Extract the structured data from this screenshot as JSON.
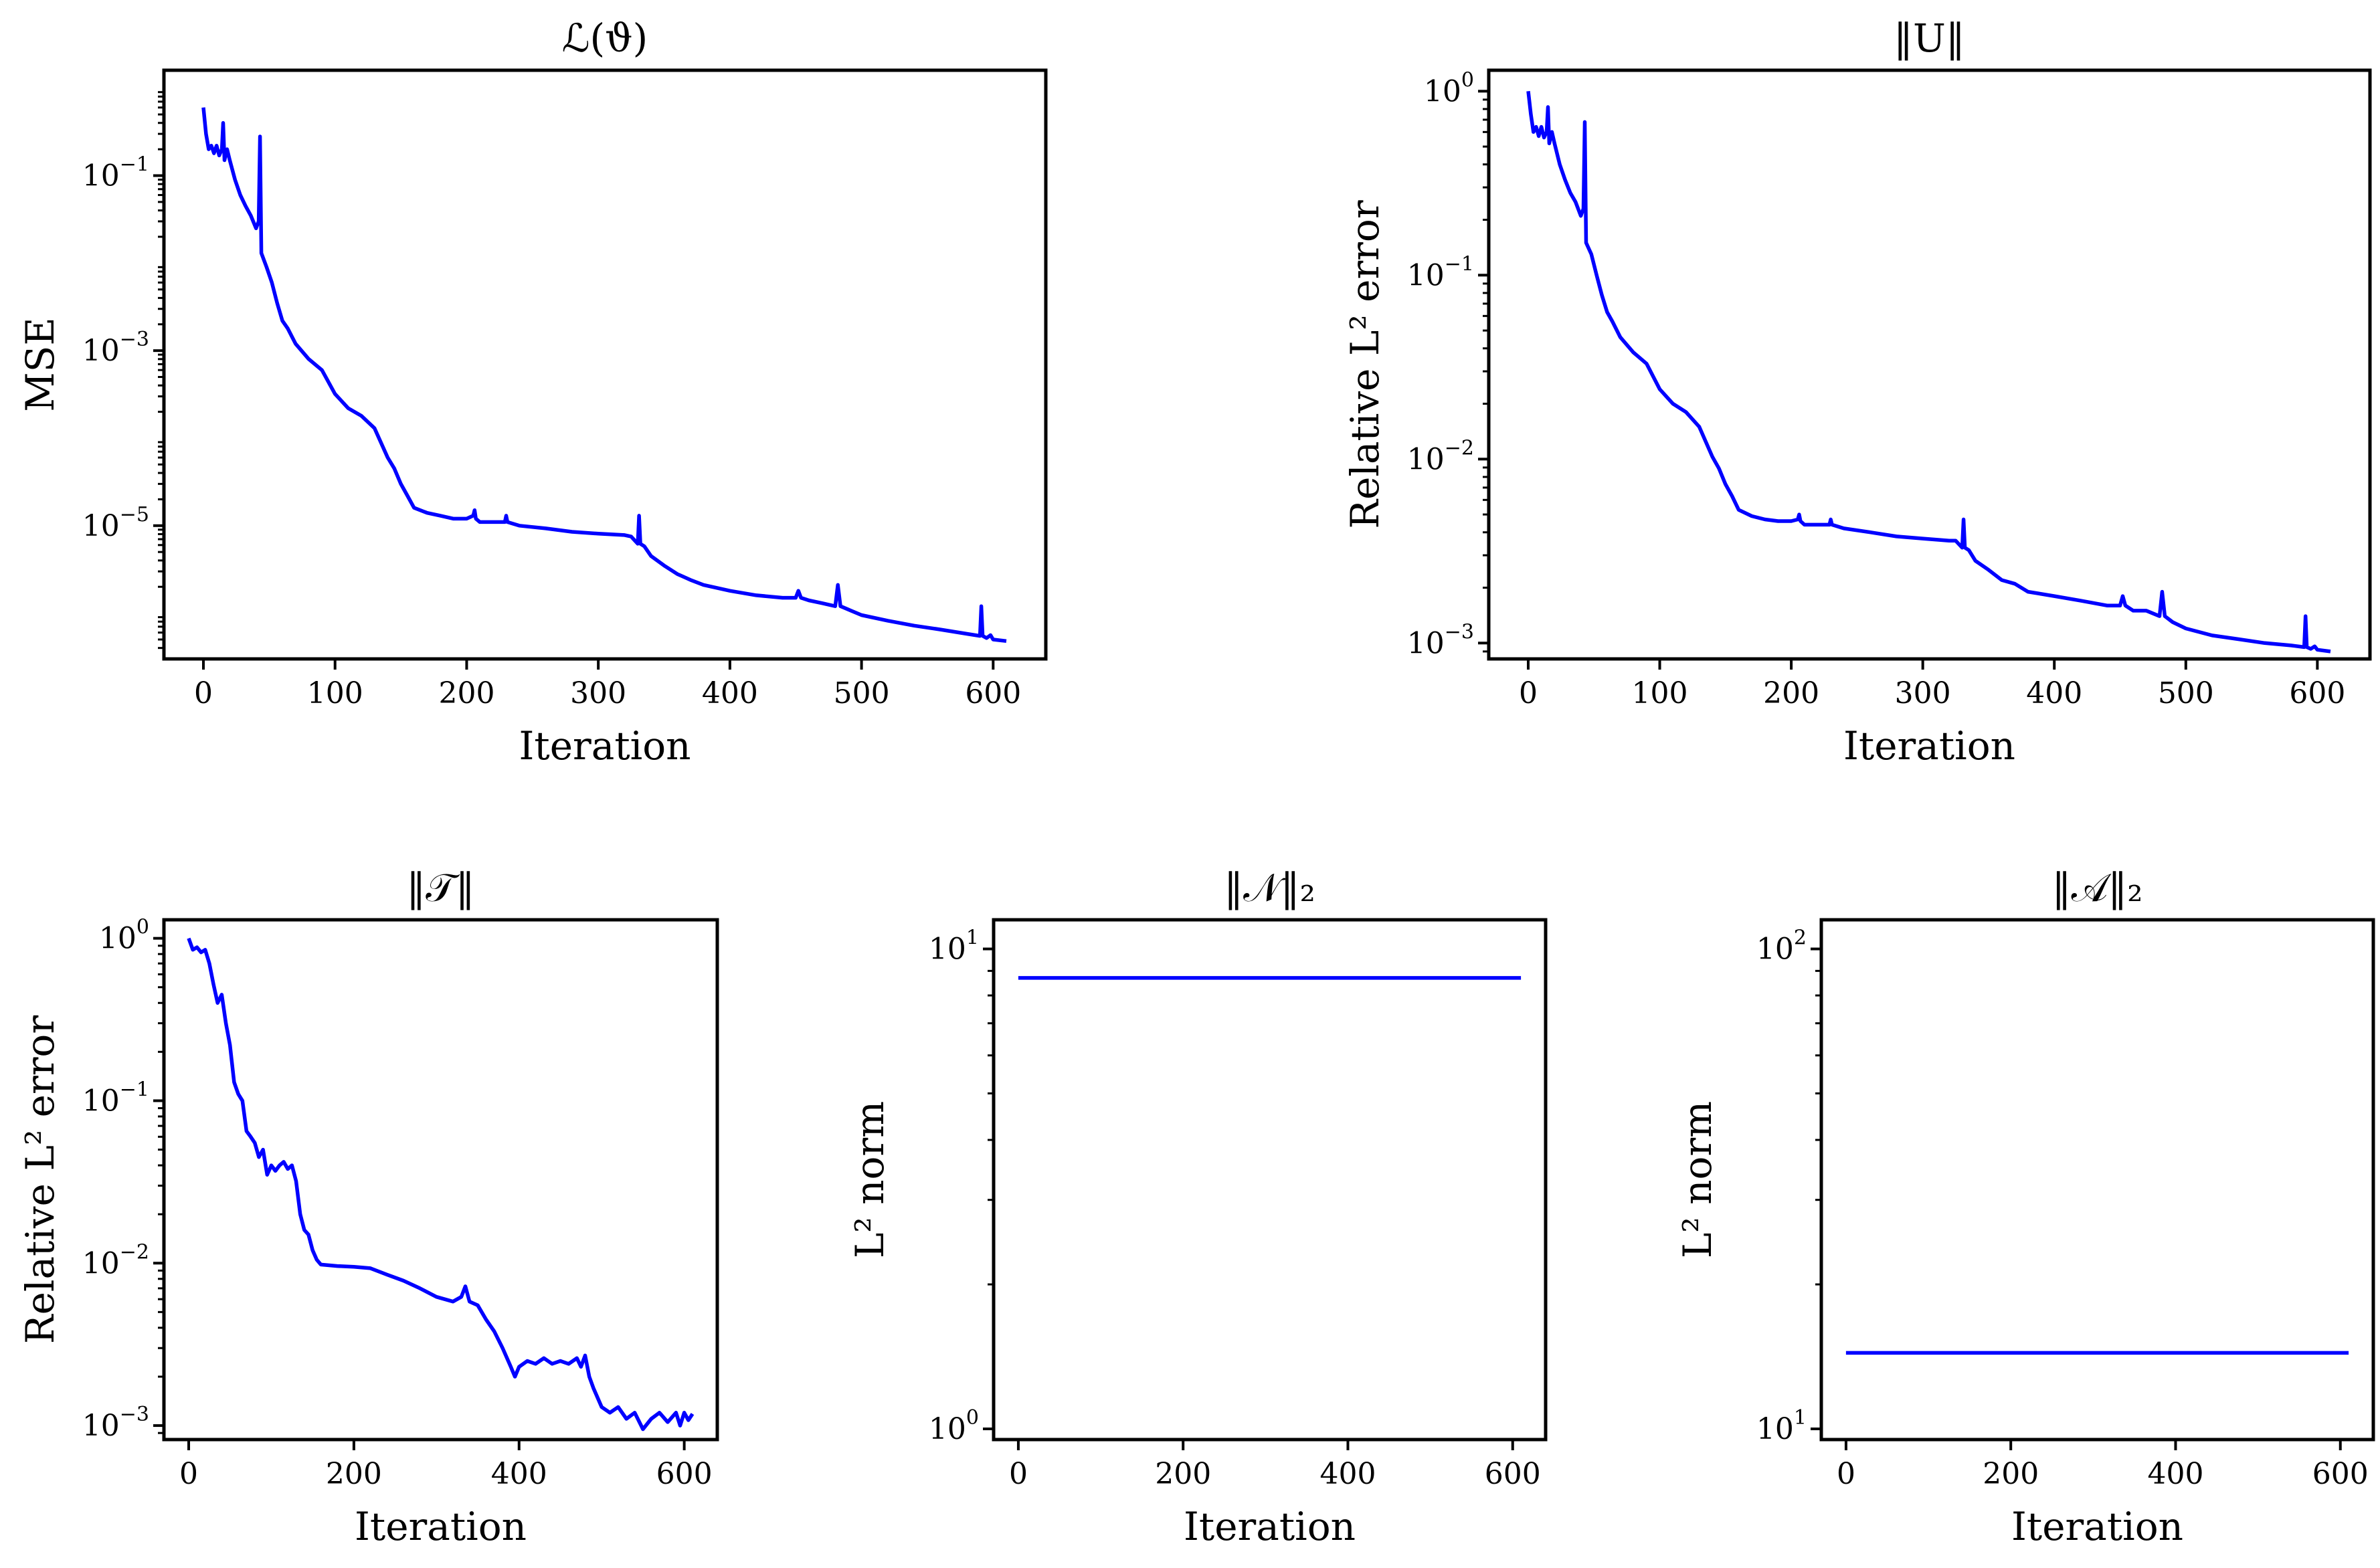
{
  "chart_data": [
    {
      "type": "line",
      "scale_y": "log",
      "title": "ℒ(ϑ)",
      "xlabel": "Iteration",
      "ylabel": "MSE",
      "xlim": [
        -30,
        640
      ],
      "ylim": [
        3e-07,
        1.6
      ],
      "xticks": [
        0,
        100,
        200,
        300,
        400,
        500,
        600
      ],
      "yticks": [
        {
          "base": "10",
          "exp": "−1",
          "value": 0.1
        },
        {
          "base": "10",
          "exp": "−3",
          "value": 0.001
        },
        {
          "base": "10",
          "exp": "−5",
          "value": 1e-05
        }
      ],
      "series": [
        {
          "name": "MSE",
          "color": "#0000ff",
          "x": [
            0,
            2,
            4,
            6,
            8,
            10,
            12,
            14,
            15,
            16,
            18,
            20,
            24,
            28,
            32,
            36,
            40,
            42,
            43,
            44,
            48,
            52,
            56,
            60,
            64,
            70,
            80,
            90,
            100,
            110,
            120,
            130,
            140,
            145,
            150,
            155,
            160,
            170,
            180,
            190,
            200,
            205,
            206,
            207,
            210,
            220,
            229,
            230,
            231,
            240,
            260,
            280,
            300,
            320,
            325,
            330,
            331,
            332,
            335,
            340,
            350,
            360,
            370,
            380,
            400,
            420,
            440,
            450,
            452,
            454,
            460,
            470,
            480,
            482,
            484,
            490,
            500,
            520,
            540,
            560,
            580,
            590,
            591,
            592,
            595,
            598,
            600,
            610
          ],
          "values": [
            0.6,
            0.3,
            0.2,
            0.22,
            0.18,
            0.22,
            0.17,
            0.2,
            0.4,
            0.15,
            0.2,
            0.15,
            0.09,
            0.06,
            0.045,
            0.035,
            0.025,
            0.03,
            0.28,
            0.013,
            0.009,
            0.006,
            0.0035,
            0.0022,
            0.0018,
            0.0012,
            0.0008,
            0.0006,
            0.00032,
            0.00022,
            0.00018,
            0.00013,
            6e-05,
            4.5e-05,
            3e-05,
            2.2e-05,
            1.6e-05,
            1.4e-05,
            1.3e-05,
            1.2e-05,
            1.2e-05,
            1.3e-05,
            1.5e-05,
            1.2e-05,
            1.1e-05,
            1.1e-05,
            1.1e-05,
            1.3e-05,
            1.1e-05,
            1e-05,
            9.3e-06,
            8.5e-06,
            8.1e-06,
            7.8e-06,
            7.5e-06,
            6.2e-06,
            1.3e-05,
            6.2e-06,
            5.8e-06,
            4.5e-06,
            3.5e-06,
            2.8e-06,
            2.4e-06,
            2.1e-06,
            1.8e-06,
            1.6e-06,
            1.5e-06,
            1.5e-06,
            1.8e-06,
            1.5e-06,
            1.4e-06,
            1.3e-06,
            1.2e-06,
            2.1e-06,
            1.2e-06,
            1.1e-06,
            9.5e-07,
            8.2e-07,
            7.2e-07,
            6.5e-07,
            5.8e-07,
            5.5e-07,
            1.2e-06,
            5.5e-07,
            5.2e-07,
            5.6e-07,
            5e-07,
            4.8e-07
          ]
        }
      ]
    },
    {
      "type": "line",
      "scale_y": "log",
      "title": "‖U‖",
      "xlabel": "Iteration",
      "ylabel": "Relative L² error",
      "xlim": [
        -30,
        640
      ],
      "ylim": [
        0.00082,
        1.3
      ],
      "xticks": [
        0,
        100,
        200,
        300,
        400,
        500,
        600
      ],
      "yticks": [
        {
          "base": "10",
          "exp": "0",
          "value": 1
        },
        {
          "base": "10",
          "exp": "−1",
          "value": 0.1
        },
        {
          "base": "10",
          "exp": "−2",
          "value": 0.01
        },
        {
          "base": "10",
          "exp": "−3",
          "value": 0.001
        }
      ],
      "series": [
        {
          "name": "U",
          "color": "#0000ff",
          "x": [
            0,
            2,
            4,
            6,
            8,
            10,
            12,
            14,
            15,
            16,
            18,
            20,
            24,
            28,
            32,
            36,
            40,
            42,
            43,
            44,
            48,
            52,
            56,
            60,
            64,
            70,
            80,
            90,
            100,
            110,
            120,
            130,
            140,
            145,
            150,
            155,
            160,
            170,
            180,
            190,
            200,
            205,
            206,
            207,
            210,
            220,
            229,
            230,
            231,
            240,
            260,
            280,
            300,
            320,
            325,
            330,
            331,
            332,
            335,
            340,
            350,
            360,
            370,
            380,
            400,
            420,
            440,
            450,
            452,
            454,
            460,
            470,
            480,
            482,
            484,
            490,
            500,
            520,
            540,
            560,
            580,
            590,
            591,
            592,
            595,
            598,
            600,
            610
          ],
          "values": [
            1.0,
            0.75,
            0.6,
            0.64,
            0.57,
            0.64,
            0.56,
            0.6,
            0.82,
            0.52,
            0.6,
            0.52,
            0.4,
            0.33,
            0.28,
            0.25,
            0.21,
            0.23,
            0.68,
            0.15,
            0.13,
            0.1,
            0.078,
            0.063,
            0.056,
            0.046,
            0.038,
            0.033,
            0.024,
            0.02,
            0.018,
            0.015,
            0.0103,
            0.0089,
            0.0073,
            0.0063,
            0.0053,
            0.0049,
            0.0047,
            0.0046,
            0.0046,
            0.0047,
            0.005,
            0.0046,
            0.0044,
            0.0044,
            0.0044,
            0.0047,
            0.0044,
            0.0042,
            0.004,
            0.0038,
            0.0037,
            0.0036,
            0.0036,
            0.0033,
            0.0047,
            0.0033,
            0.0032,
            0.0028,
            0.0025,
            0.0022,
            0.0021,
            0.0019,
            0.0018,
            0.0017,
            0.0016,
            0.0016,
            0.0018,
            0.0016,
            0.0015,
            0.0015,
            0.0014,
            0.0019,
            0.0014,
            0.0013,
            0.0012,
            0.0011,
            0.00105,
            0.001,
            0.00097,
            0.00095,
            0.0014,
            0.00095,
            0.00093,
            0.00096,
            0.00092,
            0.0009
          ]
        }
      ]
    },
    {
      "type": "line",
      "scale_y": "log",
      "title": "‖𝒯‖",
      "xlabel": "Iteration",
      "ylabel": "Relative L² error",
      "xlim": [
        -30,
        640
      ],
      "ylim": [
        0.00082,
        1.3
      ],
      "xticks": [
        0,
        200,
        400,
        600
      ],
      "yticks": [
        {
          "base": "10",
          "exp": "0",
          "value": 1
        },
        {
          "base": "10",
          "exp": "−1",
          "value": 0.1
        },
        {
          "base": "10",
          "exp": "−2",
          "value": 0.01
        },
        {
          "base": "10",
          "exp": "−3",
          "value": 0.001
        }
      ],
      "series": [
        {
          "name": "T",
          "color": "#0000ff",
          "x": [
            0,
            5,
            10,
            15,
            20,
            25,
            30,
            35,
            40,
            45,
            50,
            55,
            60,
            65,
            70,
            75,
            80,
            85,
            90,
            95,
            100,
            105,
            110,
            115,
            120,
            125,
            130,
            135,
            140,
            145,
            150,
            155,
            160,
            170,
            180,
            200,
            220,
            240,
            260,
            280,
            300,
            320,
            330,
            335,
            340,
            350,
            360,
            370,
            380,
            390,
            395,
            400,
            410,
            420,
            430,
            440,
            450,
            460,
            470,
            475,
            480,
            485,
            490,
            500,
            510,
            520,
            530,
            540,
            550,
            560,
            570,
            580,
            590,
            595,
            600,
            605,
            610
          ],
          "values": [
            1.0,
            0.85,
            0.88,
            0.82,
            0.85,
            0.7,
            0.52,
            0.4,
            0.45,
            0.3,
            0.22,
            0.13,
            0.11,
            0.1,
            0.065,
            0.06,
            0.055,
            0.045,
            0.05,
            0.035,
            0.04,
            0.037,
            0.04,
            0.042,
            0.038,
            0.04,
            0.032,
            0.02,
            0.016,
            0.015,
            0.012,
            0.0105,
            0.0098,
            0.0097,
            0.0096,
            0.0095,
            0.0093,
            0.0085,
            0.0078,
            0.007,
            0.0062,
            0.0058,
            0.0062,
            0.0072,
            0.0058,
            0.0055,
            0.0045,
            0.0038,
            0.003,
            0.0023,
            0.002,
            0.0023,
            0.0025,
            0.0024,
            0.0026,
            0.0024,
            0.0025,
            0.0024,
            0.0026,
            0.0023,
            0.0027,
            0.002,
            0.0017,
            0.0013,
            0.0012,
            0.0013,
            0.0011,
            0.0012,
            0.00095,
            0.0011,
            0.0012,
            0.00105,
            0.0012,
            0.001,
            0.0012,
            0.00108,
            0.00118
          ]
        }
      ]
    },
    {
      "type": "line",
      "scale_y": "log",
      "title": "‖𝒩‖₂",
      "xlabel": "Iteration",
      "ylabel": "L² norm",
      "xlim": [
        -30,
        640
      ],
      "ylim": [
        0.95,
        11.5
      ],
      "xticks": [
        0,
        200,
        400,
        600
      ],
      "yticks": [
        {
          "base": "10",
          "exp": "1",
          "value": 10
        },
        {
          "base": "10",
          "exp": "0",
          "value": 1
        }
      ],
      "series": [
        {
          "name": "N",
          "color": "#0000ff",
          "x": [
            0,
            610
          ],
          "values": [
            8.7,
            8.7
          ]
        }
      ]
    },
    {
      "type": "line",
      "scale_y": "log",
      "title": "‖𝒜‖₂",
      "xlabel": "Iteration",
      "ylabel": "L² norm",
      "xlim": [
        -30,
        640
      ],
      "ylim": [
        9.5,
        115
      ],
      "xticks": [
        0,
        200,
        400,
        600
      ],
      "yticks": [
        {
          "base": "10",
          "exp": "2",
          "value": 100
        },
        {
          "base": "10",
          "exp": "1",
          "value": 10
        }
      ],
      "series": [
        {
          "name": "A",
          "color": "#0000ff",
          "x": [
            0,
            610
          ],
          "values": [
            14.4,
            14.4
          ]
        }
      ]
    }
  ]
}
